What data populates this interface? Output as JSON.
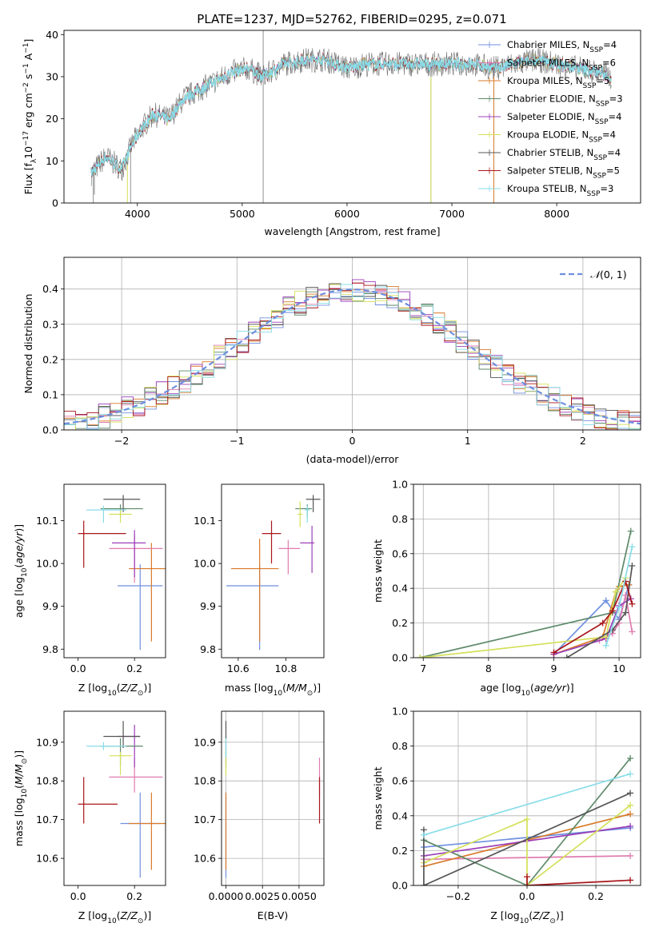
{
  "figure_title": "PLATE=1237, MJD=52762, FIBERID=0295, z=0.071",
  "colors": {
    "c0": "#6f8fdf",
    "c1": "#e08a3c",
    "c2": "#d97a2a",
    "c3": "#5e8a6a",
    "c4": "#9b3fb8",
    "c5": "#d4e05a",
    "c6": "#555555",
    "c7": "#a8161a",
    "c8": "#88dde8",
    "pink": "#e07bb0",
    "grid": "#b0b0b0",
    "black": "#000000"
  },
  "chart_data": [
    {
      "id": "spectrum",
      "type": "line",
      "title": "PLATE=1237, MJD=52762, FIBERID=0295, z=0.071",
      "xlabel": "wavelength [Angstrom, rest frame]",
      "ylabel_parts": [
        "Flux [f",
        "λ",
        "10",
        "−17",
        " erg cm",
        "−2",
        " s",
        "−1",
        " A",
        "−1",
        "]"
      ],
      "xlim": [
        3300,
        8800
      ],
      "ylim": [
        0,
        41
      ],
      "xticks": [
        4000,
        5000,
        6000,
        7000,
        8000
      ],
      "yticks": [
        0,
        10,
        20,
        30,
        40
      ],
      "continuum": {
        "x": [
          3560,
          3700,
          3850,
          3950,
          4050,
          4150,
          4300,
          4450,
          4600,
          4750,
          4900,
          5050,
          5200,
          5400,
          5600,
          5800,
          6000,
          6200,
          6400,
          6600,
          6800,
          7000,
          7200,
          7400,
          7600,
          7800,
          8000,
          8200,
          8400,
          8520
        ],
        "y": [
          7,
          11,
          8,
          14,
          18,
          21,
          20,
          25,
          27,
          29,
          31,
          32,
          30,
          33,
          34,
          34,
          32,
          33,
          33,
          33,
          33,
          33,
          33,
          32,
          33,
          34,
          33,
          32,
          31,
          30
        ]
      },
      "legend": [
        {
          "label": "Chabrier MILES, N",
          "sub": "SSP",
          "val": "=4",
          "color": "#6f8fdf"
        },
        {
          "label": "Salpeter MILES, N",
          "sub": "SSP",
          "val": "=6",
          "color": "#e07bb0"
        },
        {
          "label": "Kroupa MILES, N",
          "sub": "SSP",
          "val": "=5",
          "color": "#d97a2a"
        },
        {
          "label": "Chabrier ELODIE, N",
          "sub": "SSP",
          "val": "=3",
          "color": "#5e8a6a"
        },
        {
          "label": "Salpeter ELODIE, N",
          "sub": "SSP",
          "val": "=4",
          "color": "#9b3fb8"
        },
        {
          "label": "Kroupa ELODIE, N",
          "sub": "SSP",
          "val": "=4",
          "color": "#d4e05a"
        },
        {
          "label": "Chabrier STELIB, N",
          "sub": "SSP",
          "val": "=4",
          "color": "#555555"
        },
        {
          "label": "Salpeter STELIB, N",
          "sub": "SSP",
          "val": "=5",
          "color": "#a8161a"
        },
        {
          "label": "Kroupa STELIB, N",
          "sub": "SSP",
          "val": "=3",
          "color": "#88dde8"
        }
      ]
    },
    {
      "id": "residual-hist",
      "type": "line",
      "xlabel": "(data-model)/error",
      "ylabel": "Normed distribution",
      "xlim": [
        -2.5,
        2.5
      ],
      "ylim": [
        0,
        0.49
      ],
      "xticks": [
        -2,
        -1,
        0,
        1,
        2
      ],
      "yticks": [
        0.0,
        0.1,
        0.2,
        0.3,
        0.4
      ],
      "legend_label": "N(0,1)",
      "gaussian": {
        "mean": 0,
        "sigma": 1
      }
    },
    {
      "id": "age-vs-Z",
      "type": "scatter",
      "xlabel": "Z [log10(Z/Z⊙)]",
      "ylabel": "age  [log10(age/yr)]",
      "xlim": [
        -0.05,
        0.31
      ],
      "ylim": [
        9.78,
        10.185
      ],
      "xticks": [
        0.0,
        0.2
      ],
      "yticks": [
        9.8,
        9.9,
        10.0,
        10.1
      ],
      "points": [
        {
          "x": 0.22,
          "y": 9.948,
          "xerr": [
            0.08,
            0.08
          ],
          "yerr": [
            0.15,
            0.05
          ],
          "color": "#6f8fdf"
        },
        {
          "x": 0.26,
          "y": 9.988,
          "xerr": [
            0.08,
            0.05
          ],
          "yerr": [
            0.17,
            0.06
          ],
          "color": "#d97a2a"
        },
        {
          "x": 0.2,
          "y": 10.035,
          "xerr": [
            0.09,
            0.1
          ],
          "yerr": [
            0.08,
            0.03
          ],
          "color": "#e07bb0"
        },
        {
          "x": 0.2,
          "y": 10.048,
          "xerr": [
            0.08,
            0.04
          ],
          "yerr": [
            0.08,
            0.03
          ],
          "color": "#9b3fb8"
        },
        {
          "x": 0.15,
          "y": 10.128,
          "xerr": [
            0.07,
            0.08
          ],
          "yerr": [
            0.02,
            0.01
          ],
          "color": "#5e8a6a"
        },
        {
          "x": 0.16,
          "y": 10.15,
          "xerr": [
            0.07,
            0.06
          ],
          "yerr": [
            0.03,
            0.01
          ],
          "color": "#555555"
        },
        {
          "x": 0.09,
          "y": 10.125,
          "xerr": [
            0.06,
            0.08
          ],
          "yerr": [
            0.03,
            0.01
          ],
          "color": "#88dde8"
        },
        {
          "x": 0.15,
          "y": 10.115,
          "xerr": [
            0.04,
            0.04
          ],
          "yerr": [
            0.02,
            0.01
          ],
          "color": "#d4e05a"
        },
        {
          "x": 0.02,
          "y": 10.07,
          "xerr": [
            0.02,
            0.15
          ],
          "yerr": [
            0.08,
            0.03
          ],
          "color": "#a8161a"
        }
      ]
    },
    {
      "id": "age-vs-mass",
      "type": "scatter",
      "xlabel": "mass [log10(M/M⊙)]",
      "xlim": [
        10.53,
        10.96
      ],
      "ylim": [
        9.78,
        10.185
      ],
      "xticks": [
        10.6,
        10.8
      ],
      "yticks": [
        9.8,
        9.9,
        10.0,
        10.1
      ],
      "points": [
        {
          "x": 10.69,
          "y": 9.948,
          "xerr": [
            0.14,
            0.08
          ],
          "yerr": [
            0.15,
            0.05
          ],
          "color": "#6f8fdf"
        },
        {
          "x": 10.69,
          "y": 9.988,
          "xerr": [
            0.12,
            0.08
          ],
          "yerr": [
            0.17,
            0.07
          ],
          "color": "#d97a2a"
        },
        {
          "x": 10.81,
          "y": 10.035,
          "xerr": [
            0.04,
            0.05
          ],
          "yerr": [
            0.06,
            0.02
          ],
          "color": "#e07bb0"
        },
        {
          "x": 10.91,
          "y": 10.048,
          "xerr": [
            0.05,
            0.01
          ],
          "yerr": [
            0.07,
            0.04
          ],
          "color": "#9b3fb8"
        },
        {
          "x": 10.89,
          "y": 10.128,
          "xerr": [
            0.05,
            0.02
          ],
          "yerr": [
            0.02,
            0.01
          ],
          "color": "#5e8a6a"
        },
        {
          "x": 10.915,
          "y": 10.15,
          "xerr": [
            0.03,
            0.03
          ],
          "yerr": [
            0.03,
            0.01
          ],
          "color": "#555555"
        },
        {
          "x": 10.89,
          "y": 10.125,
          "xerr": [
            0.01,
            0.01
          ],
          "yerr": [
            0.03,
            0.01
          ],
          "color": "#88dde8"
        },
        {
          "x": 10.86,
          "y": 10.115,
          "xerr": [
            0.01,
            0.01
          ],
          "yerr": [
            0.03,
            0.03
          ],
          "color": "#d4e05a"
        },
        {
          "x": 10.74,
          "y": 10.07,
          "xerr": [
            0.04,
            0.04
          ],
          "yerr": [
            0.07,
            0.03
          ],
          "color": "#a8161a"
        }
      ]
    },
    {
      "id": "weight-vs-age",
      "type": "line",
      "xlabel": "age  [log10(age/yr)]",
      "ylabel": "mass weight",
      "xlim": [
        6.85,
        10.33
      ],
      "ylim": [
        0,
        1
      ],
      "xticks": [
        7,
        8,
        9,
        10
      ],
      "yticks": [
        0.0,
        0.2,
        0.4,
        0.6,
        0.8,
        1.0
      ],
      "series": [
        {
          "color": "#6f8fdf",
          "x": [
            9.0,
            9.8,
            10.0,
            10.15
          ],
          "y": [
            0.02,
            0.33,
            0.22,
            0.42
          ]
        },
        {
          "color": "#e07bb0",
          "x": [
            9.7,
            9.9,
            10.0,
            10.1,
            10.2
          ],
          "y": [
            0.1,
            0.14,
            0.2,
            0.36,
            0.15
          ]
        },
        {
          "color": "#d97a2a",
          "x": [
            9.0,
            9.75,
            9.95,
            10.0,
            10.15
          ],
          "y": [
            0.02,
            0.12,
            0.38,
            0.41,
            0.42
          ]
        },
        {
          "color": "#5e8a6a",
          "x": [
            6.95,
            9.9,
            10.18
          ],
          "y": [
            0.0,
            0.26,
            0.73
          ]
        },
        {
          "color": "#9b3fb8",
          "x": [
            9.0,
            9.8,
            10.0,
            10.18
          ],
          "y": [
            0.02,
            0.11,
            0.3,
            0.34
          ]
        },
        {
          "color": "#d4e05a",
          "x": [
            6.95,
            9.8,
            9.95,
            10.1
          ],
          "y": [
            0.0,
            0.12,
            0.38,
            0.46
          ]
        },
        {
          "color": "#555555",
          "x": [
            9.2,
            9.9,
            10.1,
            10.2
          ],
          "y": [
            0.0,
            0.16,
            0.26,
            0.53
          ]
        },
        {
          "color": "#a8161a",
          "x": [
            9.0,
            9.75,
            9.9,
            10.1,
            10.2
          ],
          "y": [
            0.03,
            0.2,
            0.27,
            0.44,
            0.31
          ]
        },
        {
          "color": "#88dde8",
          "x": [
            9.8,
            10.0,
            10.2
          ],
          "y": [
            0.07,
            0.29,
            0.64
          ]
        }
      ]
    },
    {
      "id": "mass-vs-Z",
      "type": "scatter",
      "xlabel": "Z [log10(Z/Z⊙)]",
      "ylabel": "mass [log10(M/M⊙)]",
      "xlim": [
        -0.05,
        0.31
      ],
      "ylim": [
        10.53,
        10.98
      ],
      "xticks": [
        0.0,
        0.2
      ],
      "yticks": [
        10.6,
        10.7,
        10.8,
        10.9
      ],
      "points": [
        {
          "x": 0.22,
          "y": 10.69,
          "xerr": [
            0.07,
            0.07
          ],
          "yerr": [
            0.14,
            0.08
          ],
          "color": "#6f8fdf"
        },
        {
          "x": 0.26,
          "y": 10.69,
          "xerr": [
            0.08,
            0.05
          ],
          "yerr": [
            0.12,
            0.08
          ],
          "color": "#d97a2a"
        },
        {
          "x": 0.2,
          "y": 10.81,
          "xerr": [
            0.09,
            0.1
          ],
          "yerr": [
            0.04,
            0.05
          ],
          "color": "#e07bb0"
        },
        {
          "x": 0.2,
          "y": 10.915,
          "xerr": [
            0.06,
            0.02
          ],
          "yerr": [
            0.08,
            0.03
          ],
          "color": "#9b3fb8"
        },
        {
          "x": 0.15,
          "y": 10.89,
          "xerr": [
            0.07,
            0.08
          ],
          "yerr": [
            0.05,
            0.02
          ],
          "color": "#5e8a6a"
        },
        {
          "x": 0.16,
          "y": 10.915,
          "xerr": [
            0.07,
            0.06
          ],
          "yerr": [
            0.03,
            0.04
          ],
          "color": "#555555"
        },
        {
          "x": 0.09,
          "y": 10.89,
          "xerr": [
            0.06,
            0.08
          ],
          "yerr": [
            0.01,
            0.01
          ],
          "color": "#88dde8"
        },
        {
          "x": 0.15,
          "y": 10.865,
          "xerr": [
            0.04,
            0.04
          ],
          "yerr": [
            0.05,
            0.01
          ],
          "color": "#d4e05a"
        },
        {
          "x": 0.02,
          "y": 10.74,
          "xerr": [
            0.02,
            0.12
          ],
          "yerr": [
            0.05,
            0.07
          ],
          "color": "#a8161a"
        }
      ]
    },
    {
      "id": "mass-vs-EBV",
      "type": "scatter",
      "xlabel": "E(B-V)",
      "xlim": [
        -0.0003,
        0.0067
      ],
      "ylim": [
        10.53,
        10.98
      ],
      "xticks": [
        0.0,
        0.0025,
        0.005
      ],
      "xtick_labels": [
        "0.0000",
        "0.0025",
        "0.0050"
      ],
      "yticks": [
        10.6,
        10.7,
        10.8,
        10.9
      ],
      "points": [
        {
          "x": 0.0,
          "y": 10.69,
          "yerr": [
            0.14,
            0.08
          ],
          "color": "#6f8fdf"
        },
        {
          "x": 0.0,
          "y": 10.69,
          "yerr": [
            0.12,
            0.08
          ],
          "color": "#d97a2a"
        },
        {
          "x": 0.0,
          "y": 10.915,
          "yerr": [
            0.08,
            0.04
          ],
          "color": "#555555"
        },
        {
          "x": 0.0,
          "y": 10.865,
          "yerr": [
            0.05,
            0.02
          ],
          "color": "#d4e05a"
        },
        {
          "x": 0.0,
          "y": 10.89,
          "yerr": [
            0.03,
            0.02
          ],
          "color": "#88dde8"
        },
        {
          "x": 0.0064,
          "y": 10.81,
          "yerr": [
            0.05,
            0.05
          ],
          "color": "#e07bb0"
        },
        {
          "x": 0.0064,
          "y": 10.74,
          "yerr": [
            0.05,
            0.07
          ],
          "color": "#a8161a"
        }
      ]
    },
    {
      "id": "weight-vs-Z",
      "type": "line",
      "xlabel": "Z [log10(Z/Z⊙)]",
      "ylabel": "mass weight",
      "xlim": [
        -0.33,
        0.33
      ],
      "ylim": [
        0,
        1
      ],
      "xticks": [
        -0.2,
        0.0,
        0.2
      ],
      "yticks": [
        0.0,
        0.2,
        0.4,
        0.6,
        0.8,
        1.0
      ],
      "series": [
        {
          "color": "#6f8fdf",
          "x": [
            -0.3,
            0.3
          ],
          "y": [
            0.22,
            0.33
          ]
        },
        {
          "color": "#e07bb0",
          "x": [
            -0.3,
            0.3
          ],
          "y": [
            0.15,
            0.17
          ]
        },
        {
          "color": "#d97a2a",
          "x": [
            -0.3,
            0.0,
            0.3
          ],
          "y": [
            0.11,
            0.26,
            0.41
          ]
        },
        {
          "color": "#5e8a6a",
          "x": [
            -0.3,
            0.0,
            0.3
          ],
          "y": [
            0.26,
            0.0,
            0.73
          ]
        },
        {
          "color": "#9b3fb8",
          "x": [
            -0.3,
            0.3
          ],
          "y": [
            0.17,
            0.34
          ]
        },
        {
          "color": "#d4e05a",
          "x": [
            -0.3,
            0.0,
            0.0,
            0.3
          ],
          "y": [
            0.13,
            0.38,
            0.0,
            0.46
          ]
        },
        {
          "color": "#555555",
          "x": [
            -0.3,
            -0.3,
            0.3
          ],
          "y": [
            0.32,
            0.0,
            0.53
          ]
        },
        {
          "color": "#a8161a",
          "x": [
            0.0,
            0.0,
            0.3
          ],
          "y": [
            0.05,
            0.0,
            0.03
          ]
        },
        {
          "color": "#88dde8",
          "x": [
            -0.3,
            0.3
          ],
          "y": [
            0.29,
            0.64
          ]
        }
      ]
    }
  ]
}
